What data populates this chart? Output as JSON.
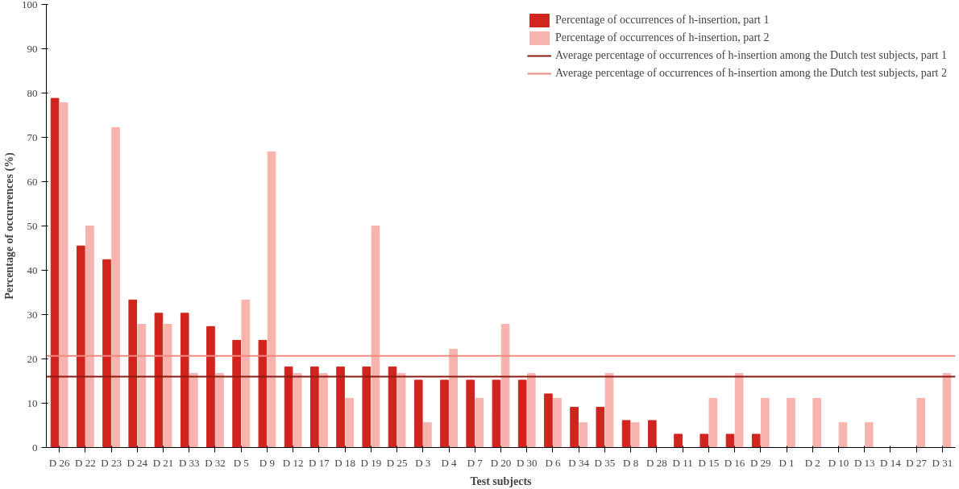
{
  "chart_data": {
    "type": "bar",
    "xlabel": "Test subjects",
    "ylabel": "Percentage of occurrences (%)",
    "categories": [
      "D 26",
      "D 22",
      "D 23",
      "D 24",
      "D 21",
      "D 33",
      "D 32",
      "D 5",
      "D 9",
      "D 12",
      "D 17",
      "D 18",
      "D 19",
      "D 25",
      "D 3",
      "D 4",
      "D 7",
      "D 20",
      "D 30",
      "D 6",
      "D 34",
      "D 35",
      "D 8",
      "D 28",
      "D 11",
      "D 15",
      "D 16",
      "D 29",
      "D 1",
      "D 2",
      "D 10",
      "D 13",
      "D 14",
      "D 27",
      "D 31"
    ],
    "series": [
      {
        "name": "Percentage of occurrences of h-insertion, part 1",
        "color": "#d0251f",
        "values": [
          78.8,
          45.5,
          42.4,
          33.3,
          30.3,
          30.3,
          27.3,
          24.2,
          24.2,
          18.2,
          18.2,
          18.2,
          18.2,
          18.2,
          15.2,
          15.2,
          15.2,
          15.2,
          15.2,
          12.1,
          9.1,
          9.1,
          6.1,
          6.1,
          3.0,
          3.0,
          3.0,
          3.0,
          0,
          0,
          0,
          0,
          0,
          0,
          0
        ]
      },
      {
        "name": "Percentage of occurrences of h-insertion, part 2",
        "color": "#f7b3ae",
        "values": [
          77.8,
          50,
          72.2,
          27.8,
          27.8,
          16.7,
          16.7,
          33.3,
          66.7,
          16.7,
          16.7,
          11.1,
          50,
          16.7,
          5.6,
          22.2,
          11.1,
          27.8,
          16.7,
          11.1,
          5.6,
          16.7,
          5.6,
          0,
          0,
          11.1,
          16.7,
          11.1,
          11.1,
          11.1,
          5.6,
          5.6,
          0,
          11.1,
          16.7
        ]
      }
    ],
    "ref_lines": [
      {
        "axis": "y",
        "value": 16,
        "label": "Average percentage of occurrences of h-insertion among the Dutch test subjects, part 1",
        "color": "#8b1a12"
      },
      {
        "axis": "y",
        "value": 20.7,
        "label": "Average percentage of occurrences of h-insertion among the Dutch test subjects, part 2",
        "color": "#f08a80"
      }
    ],
    "ylim": [
      0,
      100
    ],
    "yticks": [
      0,
      10,
      20,
      30,
      40,
      50,
      60,
      70,
      80,
      90,
      100
    ],
    "grid": false,
    "legend": "top right"
  }
}
